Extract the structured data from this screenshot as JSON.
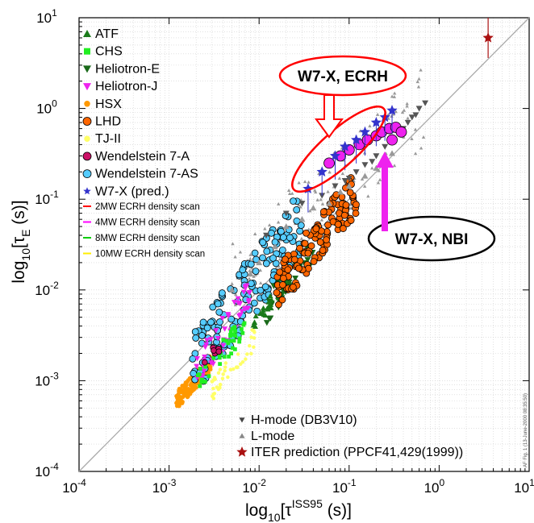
{
  "chart_data": {
    "type": "scatter",
    "x_scale": "log",
    "y_scale": "log",
    "xlim": [
      0.0001,
      10
    ],
    "ylim": [
      0.0001,
      10
    ],
    "grid": true,
    "legend_position": "top-left",
    "xlabel_base": "log",
    "xlabel_sub": "10",
    "xlabel_pre": "[τ",
    "xlabel_sup": "ISS95",
    "xlabel_post": " (s)]",
    "ylabel_base": "log",
    "ylabel_sub": "10",
    "ylabel_pre": "[τ",
    "ylabel_sup": "E",
    "ylabel_post": " (s)]",
    "xticks": [
      "10",
      "10",
      "10",
      "10",
      "10",
      "10"
    ],
    "xtick_exps": [
      "-4",
      "-3",
      "-2",
      "-1",
      "0",
      "1"
    ],
    "yticks": [
      "10",
      "10",
      "10",
      "10",
      "10",
      "10"
    ],
    "ytick_exps": [
      "-4",
      "-3",
      "-2",
      "-1",
      "0",
      "1"
    ],
    "identity_line": {
      "x": [
        0.0001,
        10
      ],
      "y": [
        0.0001,
        10
      ]
    },
    "legend_left": [
      {
        "label": "ATF",
        "color": "#1a7a1a",
        "marker": "triangle-up"
      },
      {
        "label": "CHS",
        "color": "#22ee22",
        "marker": "square"
      },
      {
        "label": "Heliotron-E",
        "color": "#1a6a1a",
        "marker": "triangle-down"
      },
      {
        "label": "Heliotron-J",
        "color": "#ee22ee",
        "marker": "triangle-down"
      },
      {
        "label": "HSX",
        "color": "#ff9900",
        "marker": "dot"
      },
      {
        "label": "LHD",
        "color": "#ff6600",
        "marker": "circle"
      },
      {
        "label": "TJ-II",
        "color": "#ffff66",
        "marker": "dot"
      },
      {
        "label": "Wendelstein 7-A",
        "color": "#cc1166",
        "marker": "circle"
      },
      {
        "label": "Wendelstein 7-AS",
        "color": "#55ccff",
        "marker": "circle"
      },
      {
        "label": "W7-X (pred.)",
        "color": "#3333cc",
        "marker": "star"
      }
    ],
    "legend_lines": [
      {
        "label": "2MW ECRH density scan",
        "color": "#ff0000"
      },
      {
        "label": "4MW ECRH density scan",
        "color": "#ff00ff"
      },
      {
        "label": "8MW ECRH density scan",
        "color": "#00cc00"
      },
      {
        "label": "10MW ECRH density scan",
        "color": "#ffee00"
      }
    ],
    "legend_bottom": [
      {
        "label": "H-mode (DB3V10)",
        "color": "#444444",
        "marker": "triangle-down"
      },
      {
        "label": "L-mode",
        "color": "#888888",
        "marker": "triangle-up"
      },
      {
        "label": "ITER prediction (PPCF41,429(1999))",
        "color": "#aa1111",
        "marker": "star"
      }
    ],
    "callouts": [
      {
        "label": "W7-X, ECRH"
      },
      {
        "label": "W7-X, NBI"
      }
    ],
    "side_note": "AF Fig. 1 (13-June-2000 08:35:50)",
    "series": [
      {
        "name": "H-mode (DB3V10)",
        "color": "#555555",
        "marker": "triangle-down",
        "points": [
          [
            0.012,
            0.04
          ],
          [
            0.02,
            0.07
          ],
          [
            0.03,
            0.09
          ],
          [
            0.05,
            0.11
          ],
          [
            0.07,
            0.14
          ],
          [
            0.09,
            0.16
          ],
          [
            0.12,
            0.2
          ],
          [
            0.15,
            0.24
          ],
          [
            0.2,
            0.3
          ],
          [
            0.25,
            0.38
          ],
          [
            0.3,
            0.45
          ],
          [
            0.4,
            0.6
          ],
          [
            0.5,
            0.8
          ],
          [
            0.6,
            1.0
          ],
          [
            0.7,
            1.15
          ],
          [
            0.35,
            0.55
          ],
          [
            0.45,
            0.7
          ],
          [
            0.55,
            0.85
          ],
          [
            0.18,
            0.26
          ],
          [
            0.1,
            0.17
          ]
        ]
      },
      {
        "name": "L-mode",
        "color": "#999999",
        "marker": "triangle-up",
        "points": [
          [
            0.005,
            0.01
          ],
          [
            0.008,
            0.015
          ],
          [
            0.01,
            0.02
          ],
          [
            0.015,
            0.03
          ],
          [
            0.02,
            0.05
          ],
          [
            0.03,
            0.06
          ],
          [
            0.04,
            0.08
          ],
          [
            0.06,
            0.09
          ],
          [
            0.08,
            0.12
          ],
          [
            0.1,
            0.14
          ],
          [
            0.15,
            0.18
          ],
          [
            0.2,
            0.22
          ],
          [
            0.25,
            0.28
          ],
          [
            0.3,
            0.32
          ]
        ]
      },
      {
        "name": "W7-X, ECRH",
        "color": "#ee22ee",
        "marker": "circle",
        "points": [
          [
            0.06,
            0.25
          ],
          [
            0.08,
            0.3
          ],
          [
            0.1,
            0.35
          ],
          [
            0.13,
            0.4
          ],
          [
            0.16,
            0.45
          ],
          [
            0.2,
            0.5
          ],
          [
            0.23,
            0.55
          ],
          [
            0.28,
            0.6
          ],
          [
            0.33,
            0.62
          ],
          [
            0.38,
            0.55
          ],
          [
            0.3,
            0.45
          ]
        ]
      },
      {
        "name": "W7-X (pred.)",
        "color": "#3333cc",
        "marker": "star",
        "points": [
          [
            0.035,
            0.13
          ],
          [
            0.05,
            0.2
          ],
          [
            0.07,
            0.3
          ],
          [
            0.09,
            0.38
          ],
          [
            0.12,
            0.45
          ],
          [
            0.15,
            0.55
          ],
          [
            0.2,
            0.7
          ],
          [
            0.25,
            0.8
          ],
          [
            0.3,
            0.95
          ]
        ]
      },
      {
        "name": "ITER prediction (PPCF41,429(1999))",
        "color": "#aa1111",
        "marker": "star",
        "points": [
          [
            3.5,
            6.0
          ]
        ]
      }
    ]
  }
}
